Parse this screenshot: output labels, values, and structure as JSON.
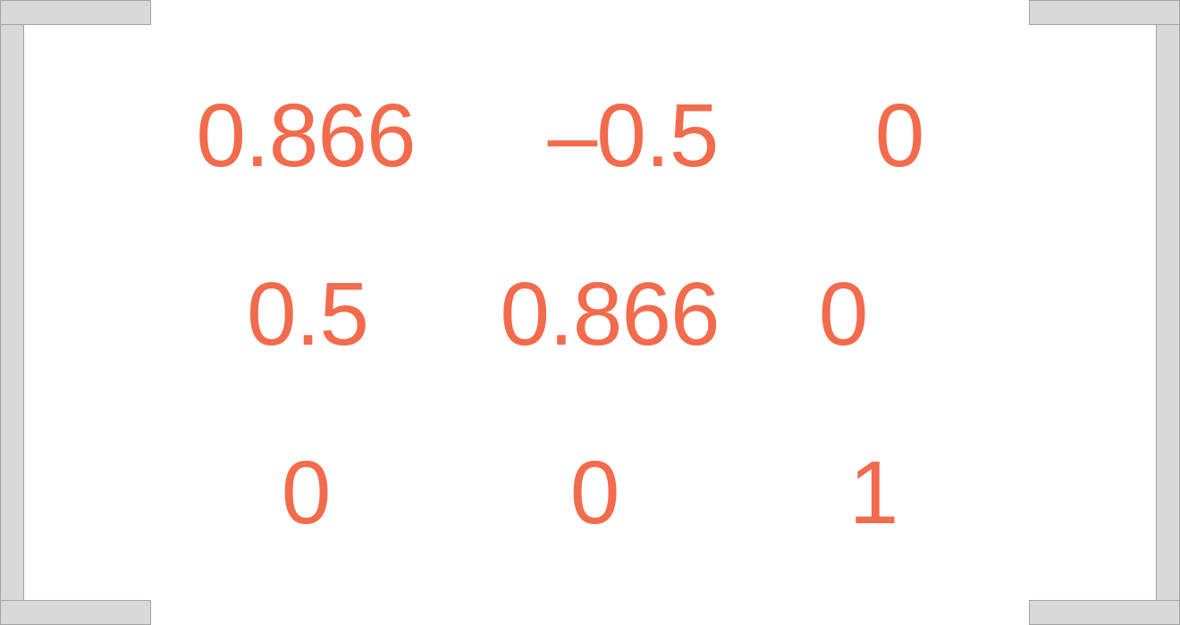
{
  "colors": {
    "entry": "#f26b4c",
    "bracket_fill": "#d9d9d9",
    "bracket_outline": "#a3a3a3",
    "background": "#ffffff"
  },
  "matrix": {
    "rows": [
      [
        "0.866",
        "–0.5",
        "0"
      ],
      [
        "0.5",
        "0.866",
        "0"
      ],
      [
        "0",
        "0",
        "1"
      ]
    ]
  }
}
